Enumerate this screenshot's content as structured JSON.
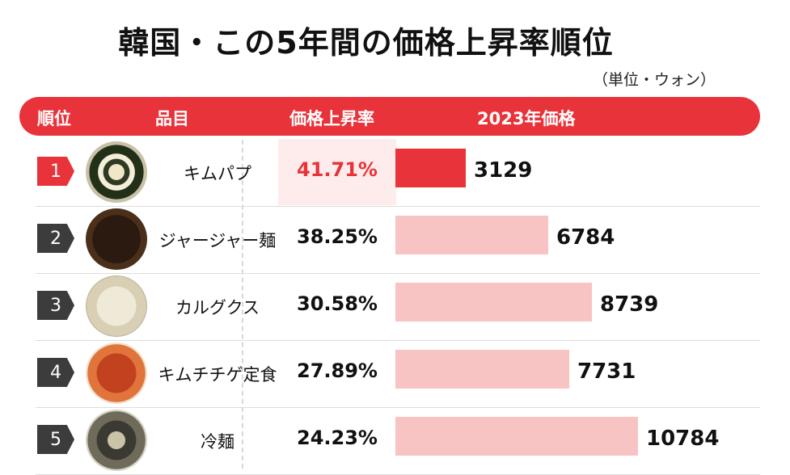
{
  "title": "韓国・この5年間の価格上昇率順位",
  "unit_note": "（単位・ウォン）",
  "columns": [
    "順位",
    "品目",
    "価格上昇率",
    "2023年価格"
  ],
  "colors": {
    "accent": "#e8333a",
    "bar_light": "#f8c3c3",
    "rank_dark": "#3c3c3c"
  },
  "rows": [
    {
      "rank": "1",
      "item": "キムパプ",
      "rate": "41.71%",
      "price": "3129"
    },
    {
      "rank": "2",
      "item": "ジャージャー麺",
      "rate": "38.25%",
      "price": "6784"
    },
    {
      "rank": "3",
      "item": "カルグクス",
      "rate": "30.58%",
      "price": "8739"
    },
    {
      "rank": "4",
      "item": "キムチチゲ定食",
      "rate": "27.89%",
      "price": "7731"
    },
    {
      "rank": "5",
      "item": "冷麺",
      "rate": "24.23%",
      "price": "10784"
    }
  ],
  "chart_data": {
    "type": "bar",
    "title": "韓国・この5年間の価格上昇率順位",
    "categories": [
      "キムパプ",
      "ジャージャー麺",
      "カルグクス",
      "キムチチゲ定食",
      "冷麺"
    ],
    "series": [
      {
        "name": "2023年価格",
        "values": [
          3129,
          6784,
          8739,
          7731,
          10784
        ]
      },
      {
        "name": "価格上昇率",
        "values": [
          41.71,
          38.25,
          30.58,
          27.89,
          24.23
        ]
      }
    ]
  }
}
